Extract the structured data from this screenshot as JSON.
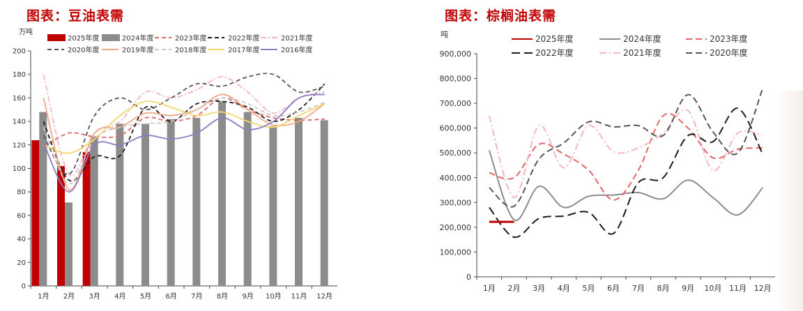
{
  "charts": [
    {
      "title": "图表：豆油表需",
      "chart_data": {
        "type": "bar+line",
        "ylabel": "万吨",
        "ylim": [
          0,
          200
        ],
        "yticks": [
          0,
          20,
          40,
          60,
          80,
          100,
          120,
          140,
          160,
          180,
          200
        ],
        "categories": [
          "1月",
          "2月",
          "3月",
          "4月",
          "5月",
          "6月",
          "7月",
          "8月",
          "9月",
          "10月",
          "11月",
          "12月"
        ],
        "bars": [
          {
            "name": "2025年度",
            "color": "#c00000",
            "values": [
              124,
              102,
              114,
              null,
              null,
              null,
              null,
              null,
              null,
              null,
              null,
              null
            ]
          },
          {
            "name": "2024年度",
            "color": "#8c8c8c",
            "values": [
              148,
              71,
              127,
              138,
              138,
              142,
              143,
              157,
              148,
              136,
              143,
              141
            ]
          }
        ],
        "lines": [
          {
            "name": "2023年度",
            "color": "#e06666",
            "dash": "6,4",
            "values": [
              118,
              130,
              127,
              128,
              143,
              140,
              145,
              160,
              150,
              143,
              141,
              142
            ]
          },
          {
            "name": "2022年度",
            "color": "#1a1a1a",
            "dash": "6,4",
            "values": [
              140,
              90,
              110,
              111,
              152,
              140,
              155,
              157,
              152,
              140,
              150,
              172
            ]
          },
          {
            "name": "2021年度",
            "color": "#f4b6c2",
            "dash": "8,3,2,3",
            "values": [
              180,
              95,
              130,
              140,
              165,
              160,
              167,
              178,
              165,
              147,
              160,
              165
            ]
          },
          {
            "name": "2020年度",
            "color": "#555555",
            "dash": "6,4",
            "values": [
              128,
              95,
              145,
              160,
              150,
              160,
              172,
              170,
              178,
              180,
              165,
              170
            ]
          },
          {
            "name": "2019年度",
            "color": "#f4a582",
            "dash": "",
            "values": [
              160,
              82,
              130,
              135,
              147,
              145,
              150,
              163,
              150,
              137,
              140,
              155
            ]
          },
          {
            "name": "2018年度",
            "color": "#c9c9c9",
            "dash": "6,4",
            "values": [
              135,
              87,
              125,
              135,
              138,
              140,
              150,
              160,
              155,
              145,
              148,
              156
            ]
          },
          {
            "name": "2017年度",
            "color": "#f6d66e",
            "dash": "",
            "values": [
              120,
              113,
              125,
              145,
              157,
              152,
              145,
              148,
              140,
              135,
              145,
              155
            ]
          },
          {
            "name": "2016年度",
            "color": "#8e7cc3",
            "dash": "",
            "values": [
              122,
              80,
              120,
              120,
              128,
              125,
              130,
              143,
              133,
              140,
              160,
              163
            ]
          }
        ]
      }
    },
    {
      "title": "图表：棕榈油表需",
      "chart_data": {
        "type": "line",
        "ylabel": "吨",
        "ylim": [
          0,
          900000
        ],
        "yticks": [
          0,
          100000,
          200000,
          300000,
          400000,
          500000,
          600000,
          700000,
          800000,
          900000
        ],
        "ytick_labels": [
          "0",
          "100,000",
          "200,000",
          "300,000",
          "400,000",
          "500,000",
          "600,000",
          "700,000",
          "800,000",
          "900,000"
        ],
        "categories": [
          "1月",
          "2月",
          "3月",
          "4月",
          "5月",
          "6月",
          "7月",
          "8月",
          "9月",
          "10月",
          "11月",
          "12月"
        ],
        "lines": [
          {
            "name": "2025年度",
            "color": "#c00000",
            "dash": "",
            "values": [
              222000,
              222000,
              null,
              null,
              null,
              null,
              null,
              null,
              null,
              null,
              null,
              null
            ]
          },
          {
            "name": "2024年度",
            "color": "#8c8c8c",
            "dash": "",
            "values": [
              510000,
              230000,
              365000,
              280000,
              325000,
              330000,
              340000,
              315000,
              390000,
              320000,
              250000,
              360000
            ]
          },
          {
            "name": "2023年度",
            "color": "#e06666",
            "dash": "9,5",
            "values": [
              420000,
              400000,
              535000,
              495000,
              430000,
              310000,
              430000,
              650000,
              600000,
              480000,
              515000,
              520000
            ]
          },
          {
            "name": "2022年度",
            "color": "#1a1a1a",
            "dash": "12,6",
            "values": [
              280000,
              160000,
              235000,
              245000,
              260000,
              175000,
              380000,
              400000,
              570000,
              545000,
              680000,
              495000
            ]
          },
          {
            "name": "2021年度",
            "color": "#f4b6c2",
            "dash": "10,4,2,4",
            "values": [
              650000,
              320000,
              610000,
              440000,
              610000,
              505000,
              520000,
              580000,
              670000,
              430000,
              580000,
              570000
            ]
          },
          {
            "name": "2020年度",
            "color": "#555555",
            "dash": "9,5",
            "values": [
              360000,
              285000,
              475000,
              540000,
              625000,
              605000,
              610000,
              570000,
              735000,
              585000,
              500000,
              760000
            ]
          }
        ]
      }
    }
  ]
}
